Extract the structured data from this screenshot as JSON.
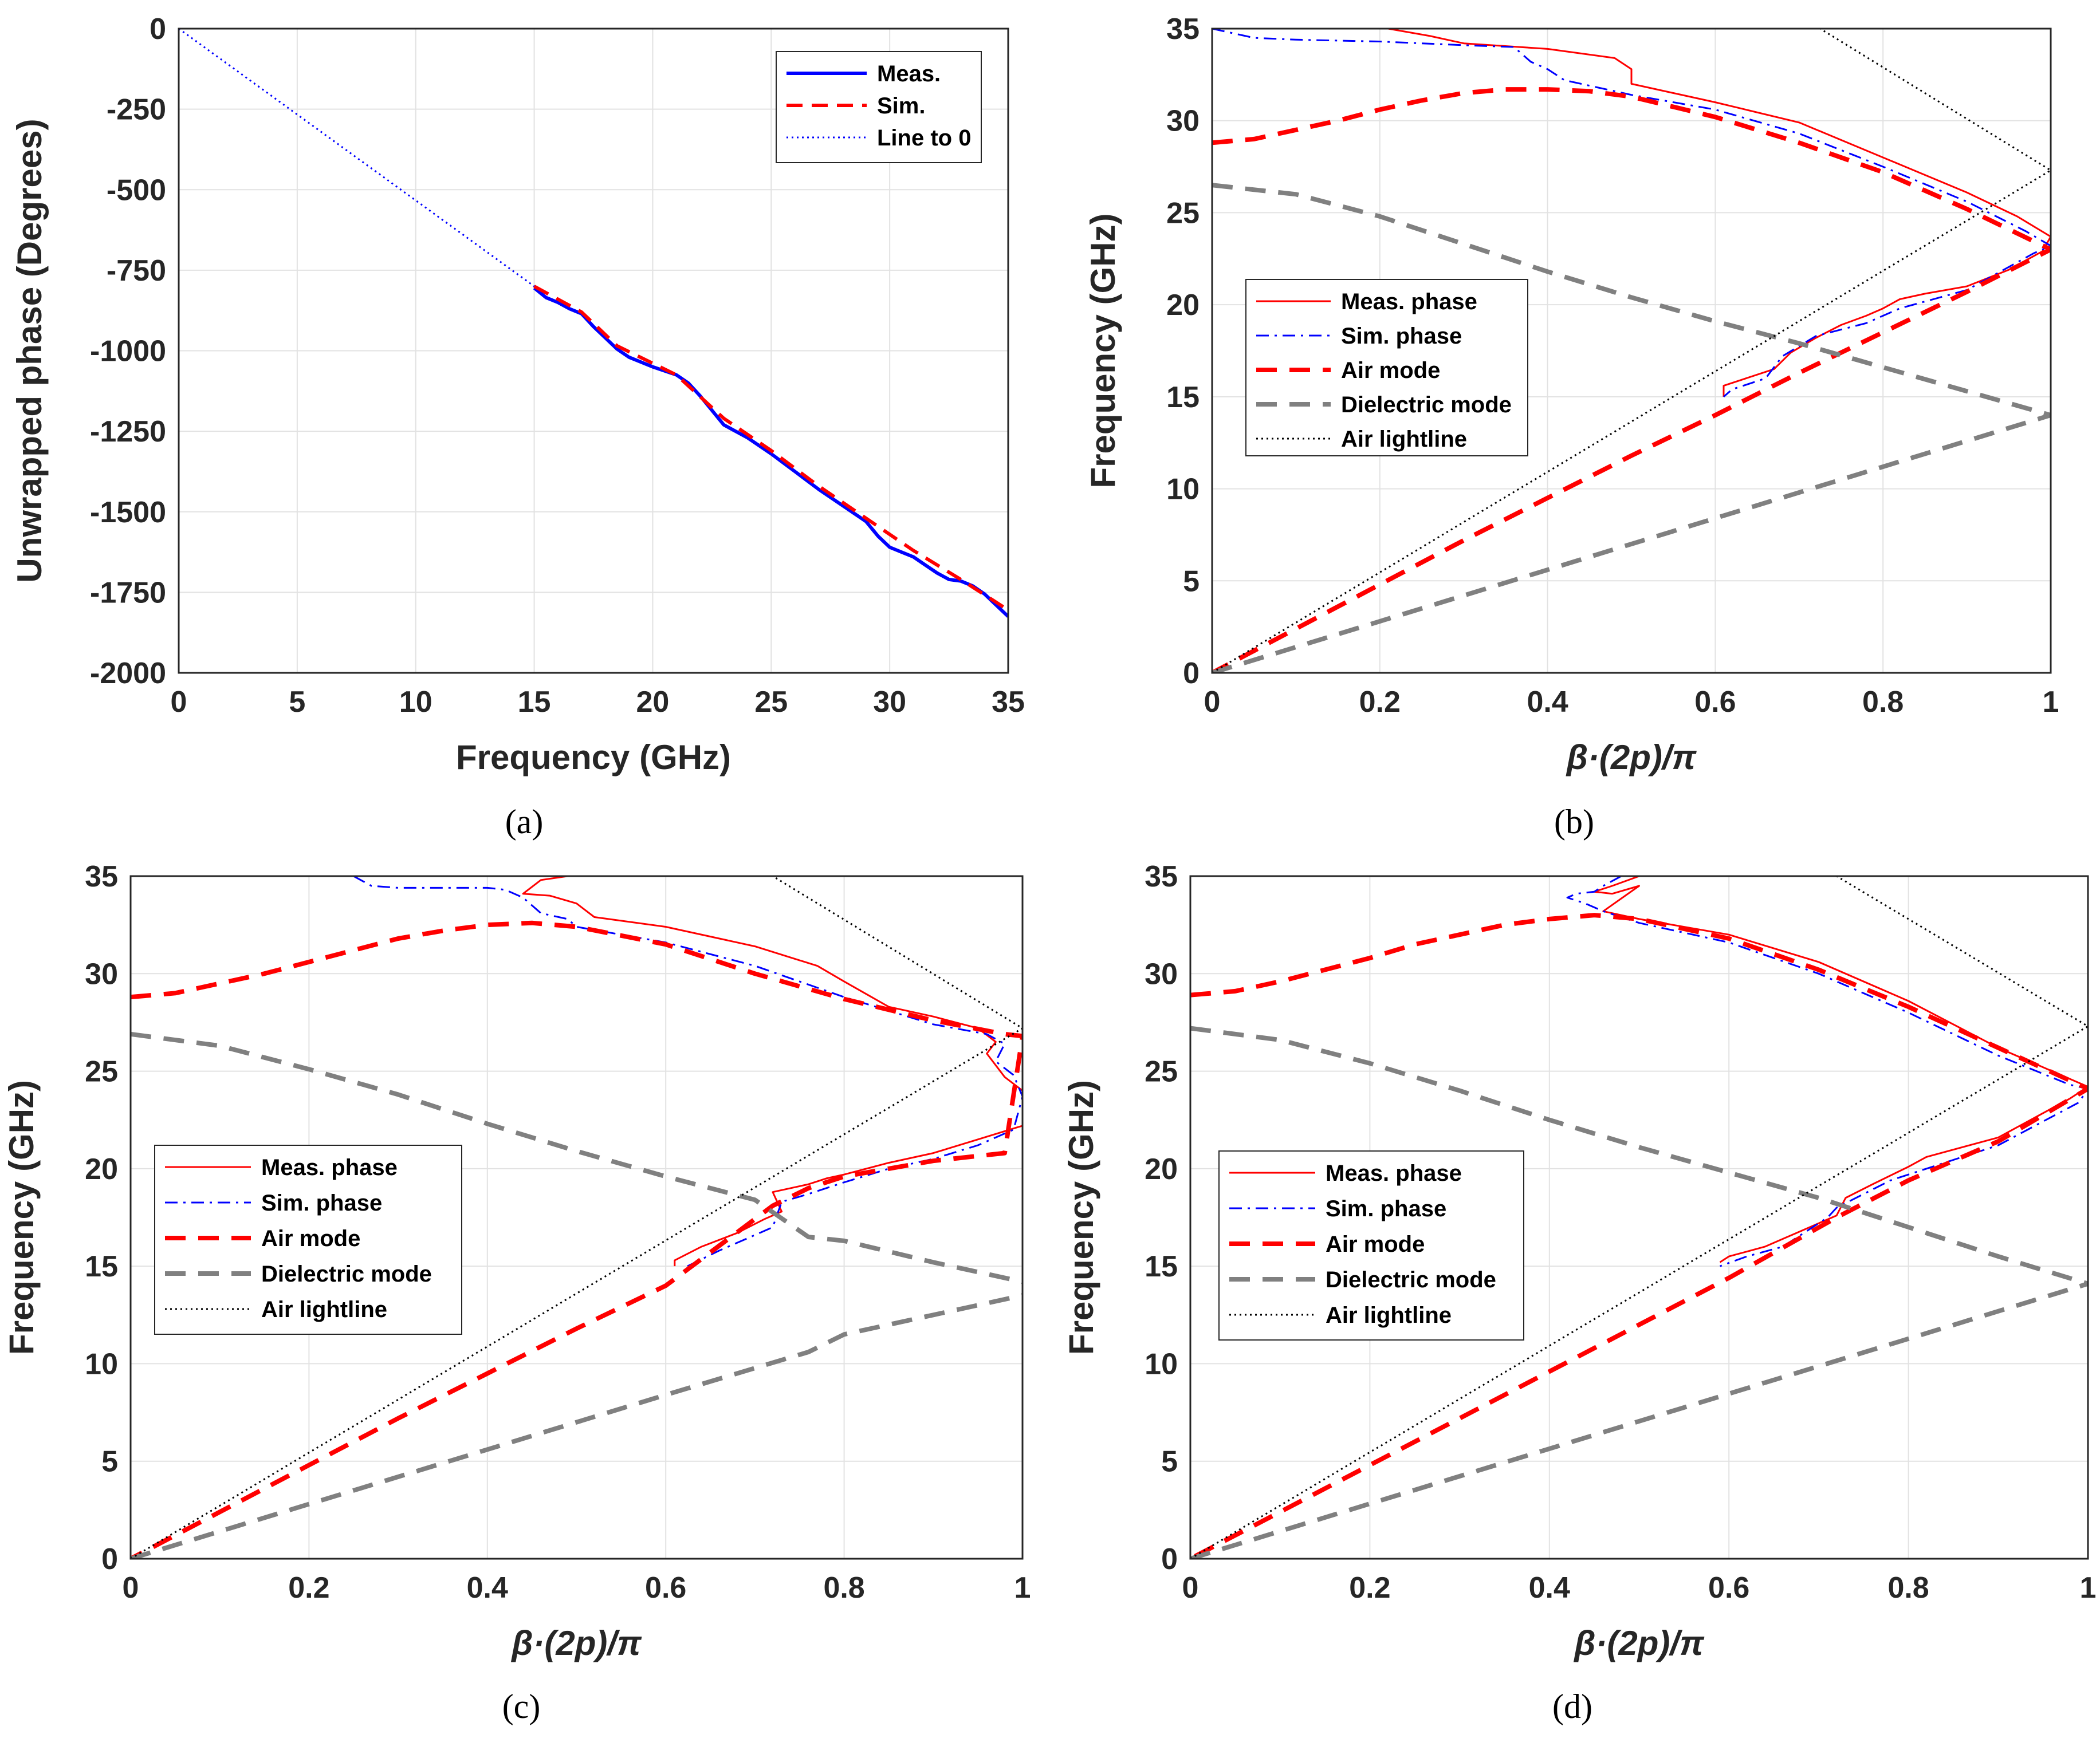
{
  "chart_data": [
    {
      "type": "line",
      "id": "a",
      "caption": "(a)",
      "xlabel": "Frequency (GHz)",
      "ylabel": "Unwrapped phase (Degrees)",
      "xlim": [
        0,
        35
      ],
      "ylim": [
        -2000,
        0
      ],
      "xticks": [
        0,
        5,
        10,
        15,
        20,
        25,
        30,
        35
      ],
      "yticks": [
        0,
        -250,
        -500,
        -750,
        -1000,
        -1250,
        -1500,
        -1750,
        -2000
      ],
      "xtick_labels": [
        "0",
        "5",
        "10",
        "15",
        "20",
        "25",
        "30",
        "35"
      ],
      "ytick_labels": [
        "0",
        "-250",
        "-500",
        "-750",
        "-1000",
        "-1250",
        "-1500",
        "-1750",
        "-2000"
      ],
      "legend_position": "top-right",
      "series": [
        {
          "name": "Meas.",
          "color": "#0000ff",
          "style": "solid",
          "width": 6,
          "x": [
            15,
            15.5,
            16,
            16.5,
            17,
            17.5,
            18,
            18.5,
            19,
            20,
            21,
            21.5,
            22,
            22.5,
            23,
            24,
            25,
            26,
            27,
            28,
            29,
            29.5,
            30,
            30.5,
            31,
            31.5,
            32,
            32.5,
            33,
            33.5,
            34,
            34.5,
            35
          ],
          "y": [
            -805,
            -835,
            -850,
            -870,
            -885,
            -925,
            -960,
            -995,
            -1020,
            -1050,
            -1075,
            -1100,
            -1140,
            -1185,
            -1230,
            -1270,
            -1320,
            -1375,
            -1430,
            -1480,
            -1530,
            -1575,
            -1610,
            -1625,
            -1640,
            -1665,
            -1690,
            -1710,
            -1715,
            -1730,
            -1755,
            -1790,
            -1825
          ]
        },
        {
          "name": "Sim.",
          "color": "#ff0000",
          "style": "dashed",
          "width": 6,
          "x": [
            15,
            17,
            18.5,
            21,
            23,
            25,
            27,
            29,
            31,
            33,
            35
          ],
          "y": [
            -800,
            -880,
            -985,
            -1075,
            -1210,
            -1310,
            -1420,
            -1520,
            -1620,
            -1710,
            -1805
          ]
        },
        {
          "name": "Line to 0",
          "color": "#0000ff",
          "style": "dotted",
          "width": 3,
          "x": [
            0,
            15
          ],
          "y": [
            0,
            -800
          ]
        }
      ]
    },
    {
      "type": "line",
      "id": "b",
      "caption": "(b)",
      "xlabel": "β·(2p)/π",
      "ylabel": "Frequency (GHz)",
      "xlim": [
        0,
        1
      ],
      "ylim": [
        0,
        35
      ],
      "xticks": [
        0,
        0.2,
        0.4,
        0.6,
        0.8,
        1
      ],
      "yticks": [
        0,
        5,
        10,
        15,
        20,
        25,
        30,
        35
      ],
      "xtick_labels": [
        "0",
        "0.2",
        "0.4",
        "0.6",
        "0.8",
        "1"
      ],
      "ytick_labels": [
        "0",
        "5",
        "10",
        "15",
        "20",
        "25",
        "30",
        "35"
      ],
      "legend_position": "center-left",
      "series": [
        {
          "name": "Meas. phase",
          "color": "#ff0000",
          "style": "solid",
          "width": 3,
          "x": [
            0.21,
            0.26,
            0.3,
            0.4,
            0.48,
            0.5,
            0.5,
            0.6,
            0.7,
            0.8,
            0.9,
            0.96,
            1.0,
            0.99,
            0.95,
            0.9,
            0.85,
            0.82,
            0.8,
            0.78,
            0.75,
            0.72,
            0.69,
            0.67,
            0.63,
            0.61,
            0.61
          ],
          "y": [
            35,
            34.6,
            34.2,
            33.9,
            33.4,
            32.8,
            32.0,
            31.0,
            29.9,
            28.0,
            26.1,
            24.8,
            23.7,
            22.9,
            21.9,
            21.0,
            20.6,
            20.3,
            19.8,
            19.4,
            18.9,
            18.2,
            17.4,
            16.5,
            15.9,
            15.6,
            15.0
          ]
        },
        {
          "name": "Sim. phase",
          "color": "#0000ff",
          "style": "dashdot",
          "width": 3,
          "x": [
            0.0,
            0.05,
            0.1,
            0.2,
            0.3,
            0.36,
            0.38,
            0.4,
            0.42,
            0.45,
            0.5,
            0.6,
            0.7,
            0.8,
            0.9,
            0.97,
            1.0,
            0.98,
            0.9,
            0.82,
            0.78,
            0.72,
            0.68,
            0.66,
            0.62,
            0.61
          ],
          "y": [
            35,
            34.5,
            34.4,
            34.3,
            34.1,
            34.0,
            33.2,
            32.8,
            32.2,
            31.9,
            31.4,
            30.6,
            29.3,
            27.5,
            25.6,
            24.0,
            23.2,
            22.8,
            20.8,
            19.8,
            19.0,
            18.3,
            17.2,
            16.0,
            15.4,
            15.0
          ]
        },
        {
          "name": "Air mode",
          "color": "#ff0000",
          "style": "dashed",
          "width": 8,
          "x": [
            0,
            0.05,
            0.1,
            0.15,
            0.2,
            0.25,
            0.3,
            0.35,
            0.4,
            0.45,
            0.5,
            0.6,
            0.7,
            0.8,
            0.9,
            1.0,
            0.9,
            0.8,
            0.7,
            0.6,
            0.5,
            0.4,
            0.3,
            0.2,
            0.1,
            0.05,
            0
          ],
          "y": [
            28.8,
            29.0,
            29.5,
            30.0,
            30.6,
            31.1,
            31.5,
            31.7,
            31.7,
            31.6,
            31.3,
            30.2,
            28.8,
            27.2,
            25.2,
            23.0,
            20.7,
            18.5,
            16.3,
            14.0,
            11.8,
            9.5,
            7.2,
            4.8,
            2.4,
            1.2,
            0
          ]
        },
        {
          "name": "Dielectric mode",
          "color": "#808080",
          "style": "dashed",
          "width": 8,
          "x": [
            0,
            0.1,
            0.2,
            0.3,
            0.4,
            0.5,
            0.6,
            0.7,
            0.8,
            0.9,
            1.0
          ],
          "y": [
            26.5,
            26.0,
            24.8,
            23.3,
            21.8,
            20.4,
            19.1,
            17.9,
            16.6,
            15.3,
            14.0
          ]
        },
        {
          "name": "Dielectric mode (lower)",
          "legend": false,
          "color": "#808080",
          "style": "dashed",
          "width": 8,
          "x": [
            0,
            1
          ],
          "y": [
            0,
            14.0
          ]
        },
        {
          "name": "Air lightline",
          "color": "#000000",
          "style": "dotted",
          "width": 3,
          "x": [
            0,
            1,
            0.725
          ],
          "y": [
            0,
            27.3,
            35
          ]
        }
      ]
    },
    {
      "type": "line",
      "id": "c",
      "caption": "(c)",
      "xlabel": "β·(2p)/π",
      "ylabel": "Frequency (GHz)",
      "xlim": [
        0,
        1
      ],
      "ylim": [
        0,
        35
      ],
      "xticks": [
        0,
        0.2,
        0.4,
        0.6,
        0.8,
        1
      ],
      "yticks": [
        0,
        5,
        10,
        15,
        20,
        25,
        30,
        35
      ],
      "xtick_labels": [
        "0",
        "0.2",
        "0.4",
        "0.6",
        "0.8",
        "1"
      ],
      "ytick_labels": [
        "0",
        "5",
        "10",
        "15",
        "20",
        "25",
        "30",
        "35"
      ],
      "legend_position": "lower-left",
      "series": [
        {
          "name": "Meas. phase",
          "color": "#ff0000",
          "style": "solid",
          "width": 3,
          "x": [
            0.49,
            0.46,
            0.44,
            0.47,
            0.5,
            0.52,
            0.6,
            0.7,
            0.77,
            0.8,
            0.85,
            0.9,
            0.95,
            0.97,
            0.96,
            0.98,
            1.0,
            1.0,
            0.95,
            0.9,
            0.85,
            0.8,
            0.78,
            0.76,
            0.72,
            0.73,
            0.71,
            0.68,
            0.64,
            0.61,
            0.61
          ],
          "y": [
            35,
            34.8,
            34.1,
            34.0,
            33.6,
            32.9,
            32.4,
            31.4,
            30.4,
            29.6,
            28.3,
            27.8,
            27.2,
            26.5,
            25.9,
            24.7,
            24.0,
            22.2,
            21.5,
            20.8,
            20.3,
            19.7,
            19.5,
            19.2,
            18.8,
            17.8,
            17.4,
            16.7,
            16.0,
            15.3,
            15.0
          ]
        },
        {
          "name": "Sim. phase",
          "color": "#0000ff",
          "style": "dashdot",
          "width": 3,
          "x": [
            0.25,
            0.27,
            0.3,
            0.35,
            0.4,
            0.42,
            0.44,
            0.46,
            0.49,
            0.5,
            0.55,
            0.6,
            0.7,
            0.8,
            0.9,
            0.96,
            0.98,
            0.97,
            0.99,
            1.0,
            0.99,
            0.95,
            0.9,
            0.85,
            0.8,
            0.76,
            0.73,
            0.72,
            0.7,
            0.66,
            0.62
          ],
          "y": [
            35,
            34.5,
            34.4,
            34.4,
            34.4,
            34.3,
            33.9,
            33.1,
            32.8,
            32.4,
            32.0,
            31.6,
            30.4,
            28.8,
            27.4,
            26.9,
            26.4,
            25.5,
            24.8,
            23.7,
            22.0,
            21.2,
            20.5,
            20.0,
            19.3,
            18.7,
            18.3,
            17.0,
            16.6,
            15.8,
            14.9
          ]
        },
        {
          "name": "Air mode",
          "color": "#ff0000",
          "style": "dashed",
          "width": 8,
          "x": [
            0,
            0.05,
            0.1,
            0.15,
            0.2,
            0.25,
            0.3,
            0.35,
            0.4,
            0.45,
            0.5,
            0.6,
            0.7,
            0.8,
            0.9,
            0.98,
            1.0,
            0.98,
            0.9,
            0.8,
            0.76,
            0.72,
            0.6,
            0.5,
            0.4,
            0.3,
            0.2,
            0.1,
            0.05,
            0
          ],
          "y": [
            28.8,
            29.0,
            29.5,
            30.0,
            30.6,
            31.2,
            31.8,
            32.2,
            32.5,
            32.6,
            32.4,
            31.5,
            30.0,
            28.7,
            27.6,
            26.9,
            26.8,
            20.8,
            20.4,
            19.6,
            19.0,
            18.1,
            14.0,
            11.8,
            9.5,
            7.2,
            4.8,
            2.4,
            1.2,
            0
          ]
        },
        {
          "name": "Dielectric mode",
          "color": "#808080",
          "style": "dashed",
          "width": 8,
          "x": [
            0,
            0.1,
            0.2,
            0.3,
            0.4,
            0.5,
            0.6,
            0.7,
            0.76,
            0.8,
            0.9,
            1.0
          ],
          "y": [
            26.9,
            26.3,
            25.1,
            23.8,
            22.3,
            20.9,
            19.6,
            18.4,
            16.5,
            16.3,
            15.2,
            14.2
          ]
        },
        {
          "name": "Dielectric mode (lower)",
          "legend": false,
          "color": "#808080",
          "style": "dashed",
          "width": 8,
          "x": [
            0,
            0.2,
            0.4,
            0.6,
            0.76,
            0.8,
            0.9,
            1.0
          ],
          "y": [
            0,
            2.8,
            5.6,
            8.4,
            10.6,
            11.5,
            12.5,
            13.5
          ]
        },
        {
          "name": "Air lightline",
          "color": "#000000",
          "style": "dotted",
          "width": 3,
          "x": [
            0,
            1,
            0.72
          ],
          "y": [
            0,
            27.2,
            35
          ]
        }
      ]
    },
    {
      "type": "line",
      "id": "d",
      "caption": "(d)",
      "xlabel": "β·(2p)/π",
      "ylabel": "Frequency (GHz)",
      "xlim": [
        0,
        1
      ],
      "ylim": [
        0,
        35
      ],
      "xticks": [
        0,
        0.2,
        0.4,
        0.6,
        0.8,
        1
      ],
      "yticks": [
        0,
        5,
        10,
        15,
        20,
        25,
        30,
        35
      ],
      "xtick_labels": [
        "0",
        "0.2",
        "0.4",
        "0.6",
        "0.8",
        "1"
      ],
      "ytick_labels": [
        "0",
        "5",
        "10",
        "15",
        "20",
        "25",
        "30",
        "35"
      ],
      "legend_position": "lower-left",
      "series": [
        {
          "name": "Meas. phase",
          "color": "#ff0000",
          "style": "solid",
          "width": 3,
          "x": [
            0.5,
            0.47,
            0.45,
            0.47,
            0.5,
            0.46,
            0.5,
            0.6,
            0.7,
            0.8,
            0.9,
            0.98,
            1.0,
            0.98,
            0.9,
            0.82,
            0.8,
            0.76,
            0.73,
            0.72,
            0.7,
            0.67,
            0.64,
            0.6,
            0.59
          ],
          "y": [
            35,
            34.5,
            34.2,
            34.1,
            34.5,
            33.2,
            32.8,
            32.0,
            30.6,
            28.6,
            26.2,
            24.6,
            24.2,
            23.6,
            21.6,
            20.6,
            20.1,
            19.2,
            18.5,
            17.6,
            17.2,
            16.6,
            16.0,
            15.5,
            15.2
          ]
        },
        {
          "name": "Sim. phase",
          "color": "#0000ff",
          "style": "dashdot",
          "width": 3,
          "x": [
            0.48,
            0.46,
            0.45,
            0.43,
            0.42,
            0.44,
            0.46,
            0.5,
            0.6,
            0.7,
            0.8,
            0.9,
            0.98,
            1.0,
            0.99,
            0.9,
            0.82,
            0.78,
            0.72,
            0.71,
            0.66,
            0.62,
            0.59
          ],
          "y": [
            35,
            34.5,
            34.2,
            34.1,
            33.9,
            33.6,
            33.2,
            32.6,
            31.6,
            30.0,
            28.0,
            25.8,
            24.3,
            24.1,
            23.4,
            21.2,
            20.0,
            19.4,
            18.0,
            17.5,
            16.0,
            15.5,
            15.0
          ]
        },
        {
          "name": "Air mode",
          "color": "#ff0000",
          "style": "dashed",
          "width": 8,
          "x": [
            0,
            0.05,
            0.1,
            0.15,
            0.2,
            0.25,
            0.3,
            0.35,
            0.4,
            0.45,
            0.5,
            0.6,
            0.7,
            0.8,
            0.9,
            1.0,
            0.9,
            0.8,
            0.72,
            0.6,
            0.5,
            0.4,
            0.3,
            0.2,
            0.1,
            0.05,
            0
          ],
          "y": [
            28.9,
            29.1,
            29.6,
            30.2,
            30.8,
            31.5,
            32.0,
            32.5,
            32.8,
            33.0,
            32.8,
            31.8,
            30.2,
            28.3,
            26.2,
            24.1,
            21.4,
            19.4,
            17.5,
            14.4,
            12.0,
            9.6,
            7.2,
            4.8,
            2.4,
            1.2,
            0
          ]
        },
        {
          "name": "Dielectric mode",
          "color": "#808080",
          "style": "dashed",
          "width": 8,
          "x": [
            0,
            0.1,
            0.2,
            0.3,
            0.4,
            0.5,
            0.6,
            0.7,
            0.8,
            0.9,
            1.0
          ],
          "y": [
            27.2,
            26.6,
            25.4,
            24.0,
            22.5,
            21.1,
            19.8,
            18.5,
            17.0,
            15.5,
            14.1
          ]
        },
        {
          "name": "Dielectric mode (lower)",
          "legend": false,
          "color": "#808080",
          "style": "dashed",
          "width": 8,
          "x": [
            0,
            1
          ],
          "y": [
            0,
            14.1
          ]
        },
        {
          "name": "Air lightline",
          "color": "#000000",
          "style": "dotted",
          "width": 3,
          "x": [
            0,
            1,
            0.72
          ],
          "y": [
            0,
            27.3,
            35
          ]
        }
      ]
    }
  ]
}
